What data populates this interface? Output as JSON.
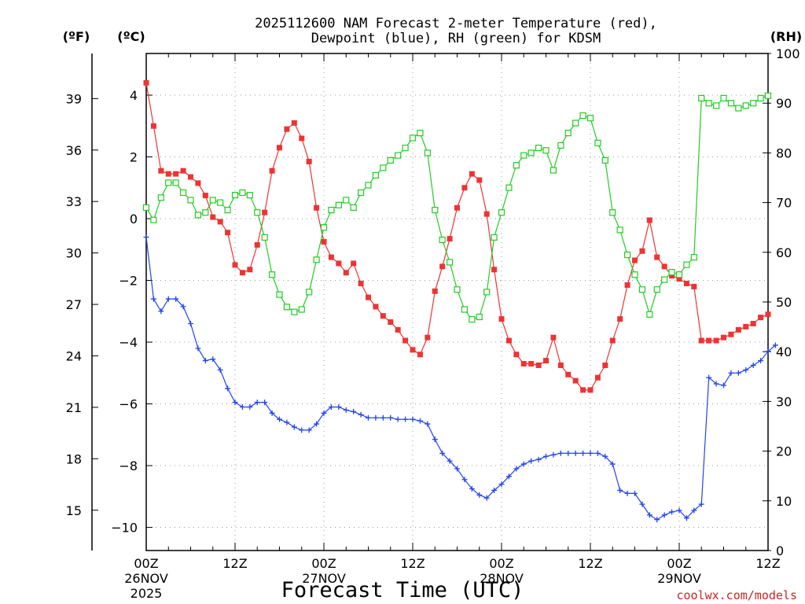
{
  "chart_data": {
    "type": "line",
    "title": "2025112600 NAM Forecast 2-meter Temperature (red),",
    "subtitle": "Dewpoint (blue), RH (green) for KDSM",
    "xlabel": "Forecast Time (UTC)",
    "watermark": "coolwx.com/models",
    "left_unit_f": "(ºF)",
    "left_unit_c": "(ºC)",
    "right_unit": "(RH)",
    "x_range_hours": [
      0,
      84
    ],
    "y_c_range": [
      -10.75,
      5.35
    ],
    "y_rh_range": [
      0,
      100
    ],
    "x_ticks": [
      {
        "h": 0,
        "label": "00Z",
        "date": "26NOV",
        "year": "2025"
      },
      {
        "h": 12,
        "label": "12Z",
        "date": "",
        "year": ""
      },
      {
        "h": 24,
        "label": "00Z",
        "date": "27NOV",
        "year": ""
      },
      {
        "h": 36,
        "label": "12Z",
        "date": "",
        "year": ""
      },
      {
        "h": 48,
        "label": "00Z",
        "date": "28NOV",
        "year": ""
      },
      {
        "h": 60,
        "label": "12Z",
        "date": "",
        "year": ""
      },
      {
        "h": 72,
        "label": "00Z",
        "date": "29NOV",
        "year": ""
      },
      {
        "h": 84,
        "label": "12Z",
        "date": "",
        "year": ""
      }
    ],
    "y_c_ticks": [
      4,
      2,
      0,
      -2,
      -4,
      -6,
      -8,
      -10
    ],
    "y_f_ticks": [
      39,
      36,
      33,
      30,
      27,
      24,
      21,
      18,
      15
    ],
    "y_rh_ticks": [
      0,
      10,
      20,
      30,
      40,
      50,
      60,
      70,
      80,
      90,
      100
    ],
    "series": [
      {
        "name": "Temperature",
        "unit": "C",
        "color": "#ee3333",
        "marker": "filled-square",
        "values": [
          4.4,
          3.0,
          1.55,
          1.45,
          1.45,
          1.55,
          1.35,
          1.15,
          0.75,
          0.05,
          -0.1,
          -0.45,
          -1.5,
          -1.75,
          -1.65,
          -0.85,
          0.2,
          1.55,
          2.3,
          2.9,
          3.1,
          2.6,
          1.85,
          0.35,
          -0.75,
          -1.25,
          -1.45,
          -1.75,
          -1.45,
          -2.1,
          -2.55,
          -2.85,
          -3.15,
          -3.35,
          -3.6,
          -3.95,
          -4.25,
          -4.4,
          -3.85,
          -2.35,
          -1.55,
          -0.65,
          0.35,
          1.0,
          1.45,
          1.25,
          0.15,
          -1.65,
          -3.25,
          -3.95,
          -4.4,
          -4.7,
          -4.7,
          -4.75,
          -4.6,
          -3.85,
          -4.75,
          -5.05,
          -5.25,
          -5.55,
          -5.55,
          -5.15,
          -4.75,
          -3.95,
          -3.25,
          -2.15,
          -1.35,
          -1.05,
          -0.05,
          -1.25,
          -1.55,
          -1.85,
          -1.95,
          -2.1,
          -2.2,
          -3.95,
          -3.95,
          -3.95,
          -3.85,
          -3.75,
          -3.6,
          -3.5,
          -3.4,
          -3.2,
          -3.1
        ]
      },
      {
        "name": "Dewpoint",
        "unit": "C",
        "color": "#2244ee",
        "marker": "plus",
        "values": [
          -0.6,
          -2.6,
          -3.0,
          -2.6,
          -2.6,
          -2.85,
          -3.4,
          -4.2,
          -4.6,
          -4.55,
          -4.9,
          -5.5,
          -5.95,
          -6.1,
          -6.1,
          -5.95,
          -5.95,
          -6.3,
          -6.5,
          -6.6,
          -6.75,
          -6.85,
          -6.85,
          -6.65,
          -6.3,
          -6.1,
          -6.1,
          -6.2,
          -6.25,
          -6.35,
          -6.45,
          -6.45,
          -6.45,
          -6.45,
          -6.5,
          -6.5,
          -6.5,
          -6.55,
          -6.65,
          -7.15,
          -7.6,
          -7.85,
          -8.1,
          -8.45,
          -8.75,
          -8.95,
          -9.05,
          -8.8,
          -8.6,
          -8.35,
          -8.1,
          -7.95,
          -7.85,
          -7.8,
          -7.7,
          -7.65,
          -7.6,
          -7.6,
          -7.6,
          -7.6,
          -7.6,
          -7.6,
          -7.7,
          -7.95,
          -8.8,
          -8.9,
          -8.9,
          -9.25,
          -9.6,
          -9.75,
          -9.6,
          -9.5,
          -9.45,
          -9.7,
          -9.45,
          -9.25,
          -5.15,
          -5.35,
          -5.4,
          -5.0,
          -5.0,
          -4.9,
          -4.75,
          -4.6,
          -4.3,
          -4.1
        ]
      },
      {
        "name": "RH",
        "unit": "%",
        "color": "#22cc22",
        "marker": "hollow-square",
        "values": [
          69,
          66.5,
          71,
          74,
          74,
          72,
          70.5,
          67.5,
          68,
          70.5,
          70,
          68.5,
          71.5,
          72,
          71.5,
          68,
          63,
          55.5,
          51.5,
          49,
          48,
          48.5,
          52,
          58.5,
          65,
          68.5,
          69.5,
          70.5,
          69,
          72,
          73.5,
          75.5,
          77,
          78.5,
          79.5,
          81,
          83,
          84,
          80,
          68.5,
          62.5,
          58,
          52.5,
          48.5,
          46.5,
          47,
          52,
          63,
          68,
          73,
          77.5,
          79.5,
          80,
          81,
          80.5,
          76.5,
          81.5,
          84,
          86,
          87.5,
          87,
          82,
          78.5,
          68,
          64.5,
          59.5,
          55.5,
          52.5,
          47.5,
          52.5,
          54.5,
          56,
          55.5,
          57.5,
          59,
          91,
          90,
          89.5,
          91,
          90,
          89,
          89.5,
          90,
          91,
          91.5
        ]
      }
    ]
  }
}
